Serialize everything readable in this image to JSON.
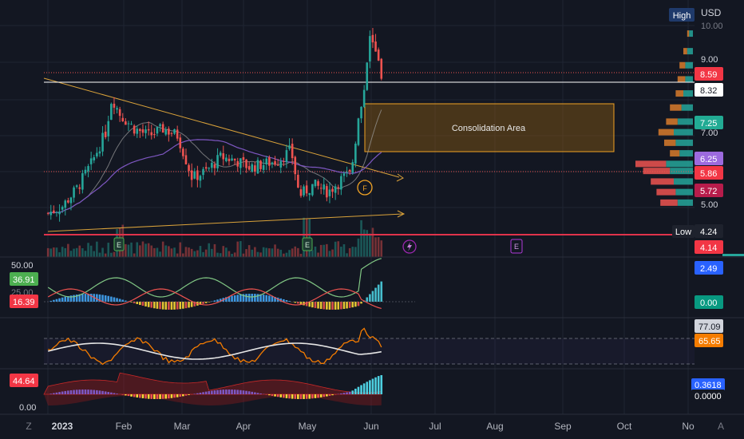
{
  "currency_label": "USD",
  "colors": {
    "background": "#131722",
    "grid": "#1f2433",
    "up": "#26a69a",
    "down": "#ef5350",
    "text": "#b2b5be",
    "zone_fill": "#8a5a12",
    "zone_stroke": "#f0a224",
    "trendline": "#d9a23a",
    "support": "#e0334b",
    "current_price": "#ffffff",
    "ma_slow": "#7e57c2",
    "ma_fast": "#9e9e9e"
  },
  "main_panel": {
    "y_axis_labels": [
      "10.00",
      "9.00",
      "7.00",
      "5.00"
    ],
    "price_badges": [
      {
        "value": "8.59",
        "bg": "#f23645",
        "fg": "#ffffff",
        "y_price": 8.59
      },
      {
        "value": "8.32",
        "bg": "#ffffff",
        "fg": "#131722",
        "y_price": 8.32
      },
      {
        "value": "7.25",
        "bg": "#22ab94",
        "fg": "#ffffff",
        "y_price": 7.25
      },
      {
        "value": "6.25",
        "bg": "#9c6ade",
        "fg": "#ffffff",
        "y_price": 6.25
      },
      {
        "value": "5.86",
        "bg": "#f23645",
        "fg": "#ffffff",
        "y_price": 5.86
      },
      {
        "value": "5.72",
        "bg": "#b71c4b",
        "fg": "#ffffff",
        "y_price": 5.72
      },
      {
        "value": "4.24",
        "bg": "#1e222d",
        "fg": "#ffffff",
        "y_price": 4.24
      },
      {
        "value": "4.14",
        "bg": "#f23645",
        "fg": "#ffffff",
        "y_price": 4.14
      }
    ],
    "high_label": "High",
    "low_label": "Low",
    "zone_label": "Consolidation Area",
    "event_marker": "E",
    "dividend_marker": "F"
  },
  "macd_panel": {
    "axis_labels": [
      "50.00",
      "25.00"
    ],
    "badges": [
      {
        "value": "36.91",
        "bg": "#4caf50"
      },
      {
        "value": "16.39",
        "bg": "#f23645"
      }
    ],
    "right_badges": [
      {
        "value": "2.49",
        "bg": "#2962ff"
      },
      {
        "value": "0.00",
        "bg": "#089981"
      }
    ]
  },
  "rsi_panel": {
    "right_badges": [
      {
        "value": "77.09",
        "bg": "#d1d4dc",
        "fg": "#131722"
      },
      {
        "value": "65.65",
        "bg": "#f57c00",
        "fg": "#ffffff"
      }
    ]
  },
  "osc_panel": {
    "left_badges": [
      {
        "value": "44.64",
        "bg": "#f23645"
      }
    ],
    "axis_labels": [
      "0.00"
    ],
    "right_badges": [
      {
        "value": "0.3618",
        "bg": "#2962ff"
      },
      {
        "value": "0.0000",
        "bg": "#131722"
      }
    ]
  },
  "time_axis": {
    "labels": [
      {
        "text": "2023",
        "bold": true
      },
      {
        "text": "Feb",
        "bold": false
      },
      {
        "text": "Mar",
        "bold": false
      },
      {
        "text": "Apr",
        "bold": false
      },
      {
        "text": "May",
        "bold": false
      },
      {
        "text": "Jun",
        "bold": false
      },
      {
        "text": "Jul",
        "bold": false
      },
      {
        "text": "Aug",
        "bold": false
      },
      {
        "text": "Sep",
        "bold": false
      },
      {
        "text": "Oct",
        "bold": false
      },
      {
        "text": "No",
        "bold": false
      }
    ],
    "corner_left": "Z",
    "corner_right": "A"
  },
  "chart_data": {
    "type": "line",
    "x_label": "",
    "y_label": "",
    "ylim": [
      4.0,
      10.0
    ],
    "price_path": [
      [
        "2023-01-03",
        4.6
      ],
      [
        "2023-01-10",
        4.8
      ],
      [
        "2023-01-17",
        5.3
      ],
      [
        "2023-01-24",
        6.0
      ],
      [
        "2023-01-31",
        6.9
      ],
      [
        "2023-02-03",
        7.9
      ],
      [
        "2023-02-07",
        7.4
      ],
      [
        "2023-02-14",
        7.0
      ],
      [
        "2023-02-21",
        6.8
      ],
      [
        "2023-02-28",
        7.0
      ],
      [
        "2023-03-07",
        6.8
      ],
      [
        "2023-03-14",
        5.6
      ],
      [
        "2023-03-21",
        5.8
      ],
      [
        "2023-03-28",
        6.2
      ],
      [
        "2023-04-04",
        6.1
      ],
      [
        "2023-04-11",
        5.9
      ],
      [
        "2023-04-18",
        6.0
      ],
      [
        "2023-04-25",
        6.1
      ],
      [
        "2023-05-01",
        6.4
      ],
      [
        "2023-05-05",
        5.1
      ],
      [
        "2023-05-12",
        5.4
      ],
      [
        "2023-05-19",
        5.2
      ],
      [
        "2023-05-26",
        5.6
      ],
      [
        "2023-05-30",
        5.7
      ],
      [
        "2023-06-02",
        7.0
      ],
      [
        "2023-06-06",
        8.3
      ],
      [
        "2023-06-08",
        9.8
      ],
      [
        "2023-06-12",
        8.9
      ],
      [
        "2023-06-14",
        8.32
      ]
    ],
    "levels": {
      "last_price": 8.32,
      "prev_close": 8.59,
      "session_low": 4.14,
      "low": 4.24
    },
    "consolidation_zone": {
      "x_start": "2023-05-31",
      "x_end": "2023-08-20",
      "y_low": 6.6,
      "y_high": 7.7
    },
    "volume_profile": [
      {
        "price": 9.7,
        "buy": 2,
        "sell": 1
      },
      {
        "price": 9.2,
        "buy": 3,
        "sell": 2
      },
      {
        "price": 8.8,
        "buy": 4,
        "sell": 3
      },
      {
        "price": 8.4,
        "buy": 4,
        "sell": 4
      },
      {
        "price": 8.0,
        "buy": 5,
        "sell": 4
      },
      {
        "price": 7.6,
        "buy": 6,
        "sell": 6
      },
      {
        "price": 7.2,
        "buy": 8,
        "sell": 6
      },
      {
        "price": 6.9,
        "buy": 10,
        "sell": 8
      },
      {
        "price": 6.6,
        "buy": 9,
        "sell": 6
      },
      {
        "price": 6.3,
        "buy": 7,
        "sell": 5
      },
      {
        "price": 6.0,
        "buy": 14,
        "sell": 16
      },
      {
        "price": 5.8,
        "buy": 12,
        "sell": 14
      },
      {
        "price": 5.5,
        "buy": 10,
        "sell": 12
      },
      {
        "price": 5.2,
        "buy": 9,
        "sell": 10
      },
      {
        "price": 4.9,
        "buy": 8,
        "sell": 9
      }
    ]
  }
}
